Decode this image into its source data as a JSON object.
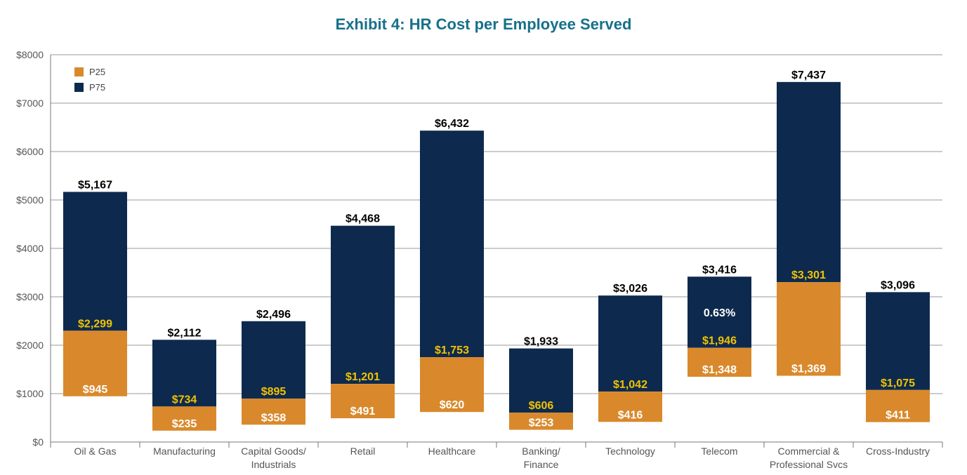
{
  "title": "Exhibit 4: HR Cost per Employee Served",
  "colors": {
    "title": "#16708a",
    "p25": "#d9892b",
    "p75": "#0d2a4e",
    "yellow_label": "#f2c200",
    "grid": "#999999"
  },
  "chart_data": {
    "type": "bar",
    "title": "Exhibit 4: HR Cost per Employee Served",
    "xlabel": "",
    "ylabel": "",
    "ylim": [
      0,
      8000
    ],
    "yticks": [
      "$0",
      "$1000",
      "$2000",
      "$3000",
      "$4000",
      "$5000",
      "$6000",
      "$7000",
      "$8000"
    ],
    "grid": "horizontal",
    "legend": {
      "placement": "top-left",
      "entries": [
        "P25",
        "P75"
      ]
    },
    "categories": [
      "Oil & Gas",
      "Manufacturing",
      "Capital Goods/\nIndustrials",
      "Retail",
      "Healthcare",
      "Banking/\nFinance",
      "Technology",
      "Telecom",
      "Commercial &\nProfessional Svcs",
      "Cross-Industry"
    ],
    "series": [
      {
        "name": "P25",
        "description": "floating range, low to high",
        "low": [
          945,
          235,
          358,
          491,
          620,
          253,
          416,
          1348,
          1369,
          411
        ],
        "high": [
          2299,
          734,
          895,
          1201,
          1753,
          606,
          1042,
          1946,
          3301,
          1075
        ],
        "low_labels": [
          "$945",
          "$235",
          "$358",
          "$491",
          "$620",
          "$253",
          "$416",
          "$1,348",
          "$1,369",
          "$411"
        ],
        "high_labels": [
          "$2,299",
          "$734",
          "$895",
          "$1,201",
          "$1,753",
          "$606",
          "$1,042",
          "$1,946",
          "$3,301",
          "$1,075"
        ]
      },
      {
        "name": "P75",
        "description": "floating range, low to high",
        "low": [
          2299,
          734,
          895,
          1201,
          1753,
          606,
          1042,
          1946,
          3301,
          1075
        ],
        "high": [
          5167,
          2112,
          2496,
          4468,
          6432,
          1933,
          3026,
          3416,
          7437,
          3096
        ],
        "high_labels": [
          "$5,167",
          "$2,112",
          "$2,496",
          "$4,468",
          "$6,432",
          "$1,933",
          "$3,026",
          "$3,416",
          "$7,437",
          "$3,096"
        ]
      }
    ],
    "annotations": [
      {
        "category": "Telecom",
        "text": "0.63%"
      }
    ]
  }
}
